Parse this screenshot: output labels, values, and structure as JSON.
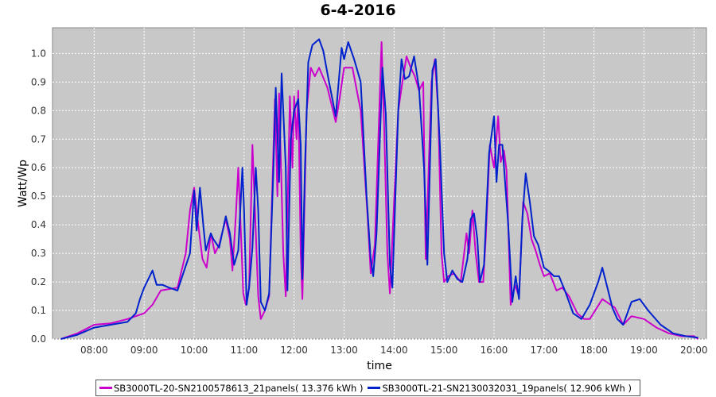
{
  "chart_data": {
    "type": "line",
    "title": "6-4-2016",
    "xlabel": "time",
    "ylabel": "Watt/Wp",
    "xlim": [
      "07:10",
      "20:15"
    ],
    "ylim": [
      0,
      1.09
    ],
    "x_ticks": [
      "08:00",
      "09:00",
      "10:00",
      "11:00",
      "12:00",
      "13:00",
      "14:00",
      "15:00",
      "16:00",
      "17:00",
      "18:00",
      "19:00",
      "20:00"
    ],
    "y_ticks": [
      "0.0",
      "0.1",
      "0.2",
      "0.3",
      "0.4",
      "0.5",
      "0.6",
      "0.7",
      "0.8",
      "0.9",
      "1.0"
    ],
    "y_tick_values": [
      0,
      0.1,
      0.2,
      0.3,
      0.4,
      0.5,
      0.6,
      0.7,
      0.8,
      0.9,
      1.0
    ],
    "grid": true,
    "legend_position": "bottom",
    "background": "#c8c8c8",
    "series": [
      {
        "name": "SB3000TL-20-SN2100578613_21panels( 13.376 kWh )",
        "color": "#cc00cc",
        "points": [
          [
            "07:20",
            0.0
          ],
          [
            "07:40",
            0.02
          ],
          [
            "08:00",
            0.05
          ],
          [
            "08:20",
            0.055
          ],
          [
            "08:40",
            0.07
          ],
          [
            "09:00",
            0.09
          ],
          [
            "09:10",
            0.12
          ],
          [
            "09:20",
            0.17
          ],
          [
            "09:40",
            0.18
          ],
          [
            "09:50",
            0.3
          ],
          [
            "09:55",
            0.45
          ],
          [
            "10:00",
            0.53
          ],
          [
            "10:05",
            0.4
          ],
          [
            "10:10",
            0.28
          ],
          [
            "10:15",
            0.25
          ],
          [
            "10:20",
            0.37
          ],
          [
            "10:25",
            0.3
          ],
          [
            "10:30",
            0.33
          ],
          [
            "10:38",
            0.42
          ],
          [
            "10:43",
            0.35
          ],
          [
            "10:46",
            0.24
          ],
          [
            "10:50",
            0.43
          ],
          [
            "10:53",
            0.6
          ],
          [
            "10:56",
            0.38
          ],
          [
            "10:59",
            0.16
          ],
          [
            "11:02",
            0.12
          ],
          [
            "11:06",
            0.18
          ],
          [
            "11:10",
            0.68
          ],
          [
            "11:13",
            0.45
          ],
          [
            "11:17",
            0.15
          ],
          [
            "11:20",
            0.07
          ],
          [
            "11:25",
            0.1
          ],
          [
            "11:30",
            0.15
          ],
          [
            "11:37",
            0.84
          ],
          [
            "11:40",
            0.5
          ],
          [
            "11:42",
            0.86
          ],
          [
            "11:47",
            0.3
          ],
          [
            "11:50",
            0.15
          ],
          [
            "11:55",
            0.85
          ],
          [
            "11:58",
            0.6
          ],
          [
            "12:00",
            0.85
          ],
          [
            "12:03",
            0.7
          ],
          [
            "12:05",
            0.87
          ],
          [
            "12:08",
            0.3
          ],
          [
            "12:10",
            0.14
          ],
          [
            "12:15",
            0.8
          ],
          [
            "12:20",
            0.95
          ],
          [
            "12:25",
            0.92
          ],
          [
            "12:30",
            0.95
          ],
          [
            "12:40",
            0.88
          ],
          [
            "12:50",
            0.76
          ],
          [
            "12:55",
            0.85
          ],
          [
            "13:00",
            0.95
          ],
          [
            "13:10",
            0.95
          ],
          [
            "13:20",
            0.8
          ],
          [
            "13:28",
            0.44
          ],
          [
            "13:32",
            0.23
          ],
          [
            "13:37",
            0.33
          ],
          [
            "13:45",
            1.04
          ],
          [
            "13:48",
            0.75
          ],
          [
            "13:52",
            0.3
          ],
          [
            "13:55",
            0.16
          ],
          [
            "14:05",
            0.8
          ],
          [
            "14:10",
            0.9
          ],
          [
            "14:15",
            0.99
          ],
          [
            "14:20",
            0.95
          ],
          [
            "14:25",
            0.92
          ],
          [
            "14:30",
            0.87
          ],
          [
            "14:35",
            0.9
          ],
          [
            "14:38",
            0.28
          ],
          [
            "14:45",
            0.9
          ],
          [
            "14:49",
            0.98
          ],
          [
            "14:53",
            0.8
          ],
          [
            "14:57",
            0.3
          ],
          [
            "15:00",
            0.2
          ],
          [
            "15:05",
            0.22
          ],
          [
            "15:12",
            0.23
          ],
          [
            "15:20",
            0.2
          ],
          [
            "15:27",
            0.37
          ],
          [
            "15:30",
            0.3
          ],
          [
            "15:34",
            0.45
          ],
          [
            "15:38",
            0.3
          ],
          [
            "15:42",
            0.2
          ],
          [
            "15:47",
            0.2
          ],
          [
            "15:50",
            0.35
          ],
          [
            "15:55",
            0.68
          ],
          [
            "16:00",
            0.6
          ],
          [
            "16:05",
            0.78
          ],
          [
            "16:08",
            0.62
          ],
          [
            "16:12",
            0.66
          ],
          [
            "16:15",
            0.59
          ],
          [
            "16:20",
            0.12
          ],
          [
            "16:25",
            0.19
          ],
          [
            "16:30",
            0.15
          ],
          [
            "16:35",
            0.48
          ],
          [
            "16:40",
            0.44
          ],
          [
            "16:45",
            0.35
          ],
          [
            "16:50",
            0.31
          ],
          [
            "16:55",
            0.26
          ],
          [
            "17:00",
            0.22
          ],
          [
            "17:07",
            0.23
          ],
          [
            "17:15",
            0.17
          ],
          [
            "17:22",
            0.18
          ],
          [
            "17:30",
            0.15
          ],
          [
            "17:40",
            0.09
          ],
          [
            "17:48",
            0.07
          ],
          [
            "17:55",
            0.07
          ],
          [
            "18:10",
            0.14
          ],
          [
            "18:25",
            0.11
          ],
          [
            "18:35",
            0.05
          ],
          [
            "18:45",
            0.08
          ],
          [
            "19:00",
            0.07
          ],
          [
            "19:15",
            0.04
          ],
          [
            "19:30",
            0.02
          ],
          [
            "19:45",
            0.01
          ],
          [
            "20:00",
            0.01
          ],
          [
            "20:05",
            0.0
          ]
        ]
      },
      {
        "name": "SB3000TL-21-SN2130032031_19panels( 12.906 kWh )",
        "color": "#0022cc",
        "points": [
          [
            "07:20",
            0.0
          ],
          [
            "07:40",
            0.015
          ],
          [
            "08:00",
            0.04
          ],
          [
            "08:20",
            0.05
          ],
          [
            "08:40",
            0.06
          ],
          [
            "08:50",
            0.09
          ],
          [
            "08:55",
            0.14
          ],
          [
            "09:00",
            0.18
          ],
          [
            "09:10",
            0.24
          ],
          [
            "09:15",
            0.19
          ],
          [
            "09:22",
            0.19
          ],
          [
            "09:30",
            0.18
          ],
          [
            "09:40",
            0.17
          ],
          [
            "09:55",
            0.3
          ],
          [
            "10:00",
            0.52
          ],
          [
            "10:03",
            0.38
          ],
          [
            "10:07",
            0.53
          ],
          [
            "10:11",
            0.4
          ],
          [
            "10:14",
            0.31
          ],
          [
            "10:20",
            0.37
          ],
          [
            "10:23",
            0.35
          ],
          [
            "10:30",
            0.32
          ],
          [
            "10:38",
            0.43
          ],
          [
            "10:43",
            0.37
          ],
          [
            "10:48",
            0.26
          ],
          [
            "10:53",
            0.31
          ],
          [
            "10:58",
            0.6
          ],
          [
            "11:00",
            0.45
          ],
          [
            "11:03",
            0.12
          ],
          [
            "11:06",
            0.18
          ],
          [
            "11:10",
            0.32
          ],
          [
            "11:14",
            0.6
          ],
          [
            "11:17",
            0.45
          ],
          [
            "11:20",
            0.13
          ],
          [
            "11:25",
            0.1
          ],
          [
            "11:30",
            0.16
          ],
          [
            "11:35",
            0.58
          ],
          [
            "11:38",
            0.88
          ],
          [
            "11:42",
            0.55
          ],
          [
            "11:45",
            0.93
          ],
          [
            "11:50",
            0.6
          ],
          [
            "11:52",
            0.17
          ],
          [
            "11:56",
            0.7
          ],
          [
            "12:00",
            0.8
          ],
          [
            "12:05",
            0.84
          ],
          [
            "12:08",
            0.68
          ],
          [
            "12:10",
            0.21
          ],
          [
            "12:13",
            0.6
          ],
          [
            "12:17",
            0.97
          ],
          [
            "12:22",
            1.03
          ],
          [
            "12:30",
            1.05
          ],
          [
            "12:35",
            1.01
          ],
          [
            "12:42",
            0.9
          ],
          [
            "12:50",
            0.78
          ],
          [
            "12:57",
            1.02
          ],
          [
            "13:00",
            0.98
          ],
          [
            "13:05",
            1.04
          ],
          [
            "13:12",
            0.98
          ],
          [
            "13:20",
            0.9
          ],
          [
            "13:27",
            0.5
          ],
          [
            "13:32",
            0.28
          ],
          [
            "13:35",
            0.22
          ],
          [
            "13:39",
            0.37
          ],
          [
            "13:46",
            0.95
          ],
          [
            "13:50",
            0.79
          ],
          [
            "13:55",
            0.26
          ],
          [
            "13:58",
            0.18
          ],
          [
            "14:05",
            0.8
          ],
          [
            "14:09",
            0.98
          ],
          [
            "14:13",
            0.91
          ],
          [
            "14:18",
            0.92
          ],
          [
            "14:24",
            0.99
          ],
          [
            "14:30",
            0.88
          ],
          [
            "14:36",
            0.6
          ],
          [
            "14:40",
            0.26
          ],
          [
            "14:46",
            0.94
          ],
          [
            "14:50",
            0.98
          ],
          [
            "14:55",
            0.68
          ],
          [
            "15:00",
            0.3
          ],
          [
            "15:04",
            0.2
          ],
          [
            "15:10",
            0.24
          ],
          [
            "15:16",
            0.21
          ],
          [
            "15:22",
            0.2
          ],
          [
            "15:28",
            0.28
          ],
          [
            "15:32",
            0.42
          ],
          [
            "15:36",
            0.44
          ],
          [
            "15:40",
            0.35
          ],
          [
            "15:43",
            0.2
          ],
          [
            "15:48",
            0.26
          ],
          [
            "15:54",
            0.65
          ],
          [
            "16:00",
            0.78
          ],
          [
            "16:03",
            0.55
          ],
          [
            "16:06",
            0.68
          ],
          [
            "16:10",
            0.68
          ],
          [
            "16:17",
            0.4
          ],
          [
            "16:22",
            0.13
          ],
          [
            "16:26",
            0.22
          ],
          [
            "16:30",
            0.14
          ],
          [
            "16:34",
            0.42
          ],
          [
            "16:38",
            0.58
          ],
          [
            "16:43",
            0.48
          ],
          [
            "16:48",
            0.36
          ],
          [
            "16:53",
            0.33
          ],
          [
            "17:00",
            0.25
          ],
          [
            "17:05",
            0.24
          ],
          [
            "17:12",
            0.22
          ],
          [
            "17:18",
            0.22
          ],
          [
            "17:25",
            0.17
          ],
          [
            "17:35",
            0.09
          ],
          [
            "17:45",
            0.07
          ],
          [
            "17:55",
            0.12
          ],
          [
            "18:05",
            0.2
          ],
          [
            "18:10",
            0.25
          ],
          [
            "18:17",
            0.17
          ],
          [
            "18:22",
            0.11
          ],
          [
            "18:28",
            0.07
          ],
          [
            "18:35",
            0.05
          ],
          [
            "18:45",
            0.13
          ],
          [
            "18:55",
            0.14
          ],
          [
            "19:05",
            0.1
          ],
          [
            "19:20",
            0.05
          ],
          [
            "19:35",
            0.02
          ],
          [
            "19:50",
            0.01
          ],
          [
            "20:05",
            0.005
          ]
        ]
      }
    ]
  }
}
